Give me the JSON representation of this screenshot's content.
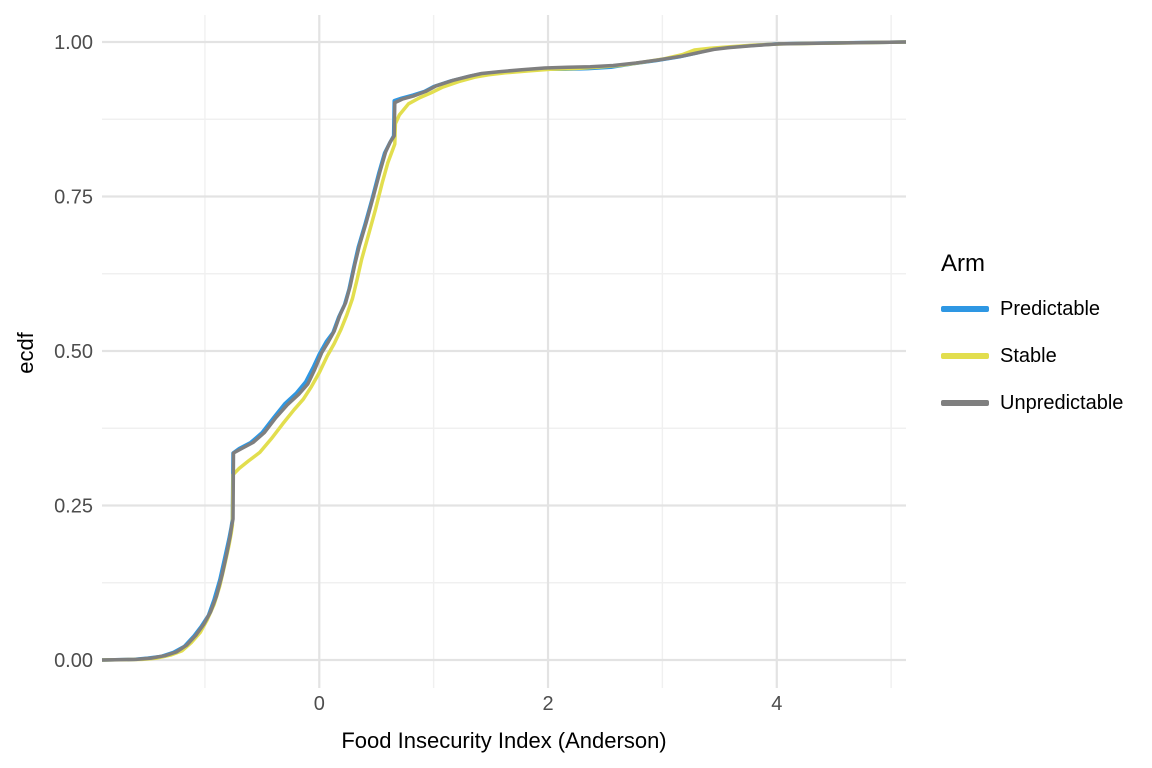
{
  "chart_data": {
    "type": "line",
    "subtype": "ecdf",
    "title": "",
    "xlabel": "Food Insecurity Index (Anderson)",
    "ylabel": "ecdf",
    "xlim": [
      -1.9,
      5.13
    ],
    "ylim": [
      0,
      1
    ],
    "grid": true,
    "legend_position": "right",
    "legend_title": "Arm",
    "x_ticks": [
      0,
      2,
      4
    ],
    "x_tick_labels": [
      "0",
      "2",
      "4"
    ],
    "x_minor_gridlines": [
      -1,
      1,
      3,
      5
    ],
    "y_ticks": [
      0,
      0.25,
      0.5,
      0.75,
      1.0
    ],
    "y_tick_labels": [
      "0.00",
      "0.25",
      "0.50",
      "0.75",
      "1.00"
    ],
    "y_minor_gridlines": [
      0.125,
      0.375,
      0.625,
      0.875
    ],
    "colors": {
      "major_grid": "#e3e3e3",
      "minor_grid": "#f0f0f0",
      "tick_label": "#4d4d4d",
      "axis_title": "#000000",
      "background": "#ffffff"
    },
    "series": [
      {
        "name": "Predictable",
        "color": "#2e97e3",
        "points": [
          [
            -1.9,
            0.0
          ],
          [
            -1.62,
            0.001
          ],
          [
            -1.5,
            0.003
          ],
          [
            -1.38,
            0.006
          ],
          [
            -1.28,
            0.012
          ],
          [
            -1.18,
            0.022
          ],
          [
            -1.1,
            0.038
          ],
          [
            -1.03,
            0.055
          ],
          [
            -0.97,
            0.072
          ],
          [
            -0.92,
            0.098
          ],
          [
            -0.87,
            0.13
          ],
          [
            -0.83,
            0.163
          ],
          [
            -0.79,
            0.196
          ],
          [
            -0.77,
            0.215
          ],
          [
            -0.76,
            0.228
          ],
          [
            -0.755,
            0.335
          ],
          [
            -0.7,
            0.342
          ],
          [
            -0.6,
            0.352
          ],
          [
            -0.5,
            0.368
          ],
          [
            -0.4,
            0.392
          ],
          [
            -0.3,
            0.415
          ],
          [
            -0.2,
            0.432
          ],
          [
            -0.12,
            0.45
          ],
          [
            -0.05,
            0.475
          ],
          [
            0.0,
            0.495
          ],
          [
            0.06,
            0.515
          ],
          [
            0.12,
            0.53
          ],
          [
            0.17,
            0.555
          ],
          [
            0.22,
            0.575
          ],
          [
            0.26,
            0.6
          ],
          [
            0.3,
            0.635
          ],
          [
            0.34,
            0.668
          ],
          [
            0.4,
            0.705
          ],
          [
            0.46,
            0.745
          ],
          [
            0.52,
            0.788
          ],
          [
            0.57,
            0.82
          ],
          [
            0.61,
            0.835
          ],
          [
            0.65,
            0.848
          ],
          [
            0.655,
            0.905
          ],
          [
            0.72,
            0.909
          ],
          [
            0.82,
            0.914
          ],
          [
            0.92,
            0.92
          ],
          [
            1.0,
            0.928
          ],
          [
            1.15,
            0.937
          ],
          [
            1.3,
            0.944
          ],
          [
            1.4,
            0.948
          ],
          [
            1.55,
            0.951
          ],
          [
            1.75,
            0.953
          ],
          [
            1.95,
            0.956
          ],
          [
            2.15,
            0.956
          ],
          [
            2.35,
            0.957
          ],
          [
            2.55,
            0.959
          ],
          [
            2.75,
            0.965
          ],
          [
            2.95,
            0.97
          ],
          [
            3.15,
            0.976
          ],
          [
            3.3,
            0.982
          ],
          [
            3.42,
            0.988
          ],
          [
            3.55,
            0.991
          ],
          [
            3.75,
            0.994
          ],
          [
            4.0,
            0.997
          ],
          [
            4.3,
            0.998
          ],
          [
            4.7,
            0.999
          ],
          [
            5.13,
            1.0
          ]
        ]
      },
      {
        "name": "Stable",
        "color": "#e2de4e",
        "points": [
          [
            -1.9,
            0.0
          ],
          [
            -1.55,
            0.001
          ],
          [
            -1.42,
            0.003
          ],
          [
            -1.3,
            0.008
          ],
          [
            -1.2,
            0.015
          ],
          [
            -1.12,
            0.028
          ],
          [
            -1.04,
            0.045
          ],
          [
            -0.98,
            0.065
          ],
          [
            -0.92,
            0.09
          ],
          [
            -0.87,
            0.12
          ],
          [
            -0.83,
            0.152
          ],
          [
            -0.79,
            0.185
          ],
          [
            -0.77,
            0.205
          ],
          [
            -0.76,
            0.218
          ],
          [
            -0.755,
            0.3
          ],
          [
            -0.7,
            0.31
          ],
          [
            -0.62,
            0.322
          ],
          [
            -0.52,
            0.336
          ],
          [
            -0.42,
            0.358
          ],
          [
            -0.32,
            0.382
          ],
          [
            -0.22,
            0.405
          ],
          [
            -0.14,
            0.422
          ],
          [
            -0.07,
            0.442
          ],
          [
            0.0,
            0.465
          ],
          [
            0.07,
            0.492
          ],
          [
            0.13,
            0.512
          ],
          [
            0.19,
            0.535
          ],
          [
            0.24,
            0.558
          ],
          [
            0.29,
            0.585
          ],
          [
            0.33,
            0.615
          ],
          [
            0.37,
            0.648
          ],
          [
            0.43,
            0.688
          ],
          [
            0.49,
            0.728
          ],
          [
            0.55,
            0.772
          ],
          [
            0.6,
            0.805
          ],
          [
            0.64,
            0.825
          ],
          [
            0.66,
            0.835
          ],
          [
            0.665,
            0.868
          ],
          [
            0.7,
            0.882
          ],
          [
            0.78,
            0.9
          ],
          [
            0.88,
            0.91
          ],
          [
            0.98,
            0.918
          ],
          [
            1.08,
            0.927
          ],
          [
            1.22,
            0.936
          ],
          [
            1.36,
            0.943
          ],
          [
            1.48,
            0.947
          ],
          [
            1.62,
            0.95
          ],
          [
            1.82,
            0.953
          ],
          [
            2.02,
            0.956
          ],
          [
            2.22,
            0.957
          ],
          [
            2.42,
            0.959
          ],
          [
            2.62,
            0.962
          ],
          [
            2.82,
            0.967
          ],
          [
            3.02,
            0.973
          ],
          [
            3.18,
            0.98
          ],
          [
            3.28,
            0.987
          ],
          [
            3.42,
            0.99
          ],
          [
            3.58,
            0.992
          ],
          [
            3.8,
            0.995
          ],
          [
            4.05,
            0.997
          ],
          [
            4.4,
            0.998
          ],
          [
            4.8,
            0.999
          ],
          [
            5.13,
            1.0
          ]
        ]
      },
      {
        "name": "Unpredictable",
        "color": "#7f7f7f",
        "points": [
          [
            -1.9,
            0.0
          ],
          [
            -1.6,
            0.001
          ],
          [
            -1.47,
            0.003
          ],
          [
            -1.35,
            0.007
          ],
          [
            -1.25,
            0.013
          ],
          [
            -1.16,
            0.024
          ],
          [
            -1.08,
            0.04
          ],
          [
            -1.01,
            0.058
          ],
          [
            -0.95,
            0.078
          ],
          [
            -0.9,
            0.103
          ],
          [
            -0.85,
            0.138
          ],
          [
            -0.81,
            0.172
          ],
          [
            -0.78,
            0.2
          ],
          [
            -0.765,
            0.218
          ],
          [
            -0.755,
            0.228
          ],
          [
            -0.75,
            0.335
          ],
          [
            -0.68,
            0.342
          ],
          [
            -0.58,
            0.352
          ],
          [
            -0.48,
            0.368
          ],
          [
            -0.38,
            0.392
          ],
          [
            -0.28,
            0.413
          ],
          [
            -0.18,
            0.43
          ],
          [
            -0.1,
            0.447
          ],
          [
            -0.04,
            0.47
          ],
          [
            0.02,
            0.497
          ],
          [
            0.08,
            0.515
          ],
          [
            0.13,
            0.532
          ],
          [
            0.18,
            0.558
          ],
          [
            0.23,
            0.578
          ],
          [
            0.27,
            0.605
          ],
          [
            0.31,
            0.64
          ],
          [
            0.35,
            0.67
          ],
          [
            0.41,
            0.708
          ],
          [
            0.47,
            0.748
          ],
          [
            0.53,
            0.79
          ],
          [
            0.58,
            0.822
          ],
          [
            0.62,
            0.838
          ],
          [
            0.655,
            0.848
          ],
          [
            0.66,
            0.902
          ],
          [
            0.73,
            0.908
          ],
          [
            0.83,
            0.913
          ],
          [
            0.93,
            0.92
          ],
          [
            1.02,
            0.929
          ],
          [
            1.17,
            0.938
          ],
          [
            1.32,
            0.945
          ],
          [
            1.42,
            0.949
          ],
          [
            1.57,
            0.952
          ],
          [
            1.77,
            0.955
          ],
          [
            1.97,
            0.958
          ],
          [
            2.17,
            0.959
          ],
          [
            2.37,
            0.96
          ],
          [
            2.57,
            0.962
          ],
          [
            2.77,
            0.966
          ],
          [
            2.97,
            0.971
          ],
          [
            3.17,
            0.977
          ],
          [
            3.32,
            0.983
          ],
          [
            3.45,
            0.988
          ],
          [
            3.58,
            0.991
          ],
          [
            3.78,
            0.994
          ],
          [
            4.02,
            0.997
          ],
          [
            4.35,
            0.998
          ],
          [
            4.75,
            0.999
          ],
          [
            5.13,
            1.0
          ]
        ]
      }
    ]
  },
  "legend": {
    "title": "Arm",
    "items": [
      {
        "label": "Predictable"
      },
      {
        "label": "Stable"
      },
      {
        "label": "Unpredictable"
      }
    ]
  }
}
